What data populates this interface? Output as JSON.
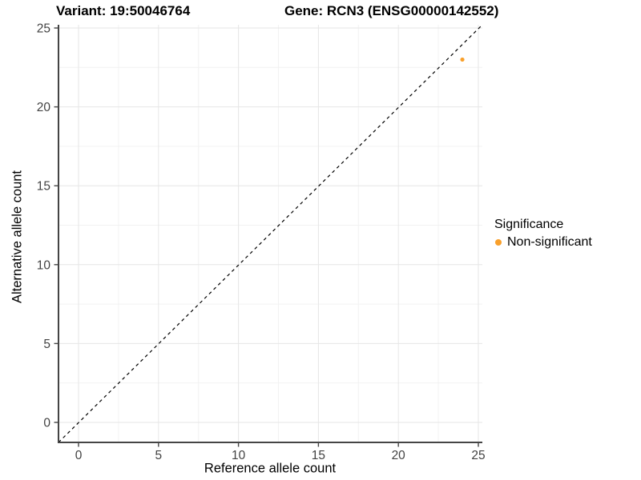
{
  "figure": {
    "title_left": "Variant: 19:50046764",
    "title_right": "Gene: RCN3 (ENSG00000142552)"
  },
  "chart_data": {
    "type": "scatter",
    "title_left": "Variant: 19:50046764",
    "title_right": "Gene: RCN3 (ENSG00000142552)",
    "xlabel": "Reference allele count",
    "ylabel": "Alternative allele count",
    "xlim": [
      -1.25,
      25.25
    ],
    "ylim": [
      -1.3,
      25.2
    ],
    "xticks": [
      0,
      5,
      10,
      15,
      20,
      25
    ],
    "yticks": [
      0,
      5,
      10,
      15,
      20,
      25
    ],
    "minor_gridlines": true,
    "grid": true,
    "identity_line": {
      "equation": "y = x",
      "style": "dashed",
      "color": "#000000"
    },
    "series": [
      {
        "name": "Non-significant",
        "color": "#F9A02B",
        "points": [
          {
            "x": 24,
            "y": 23
          }
        ]
      }
    ],
    "legend": {
      "title": "Significance",
      "position": "right",
      "entries": [
        {
          "label": "Non-significant",
          "color": "#F9A02B"
        }
      ]
    },
    "colors": {
      "major_grid": "#E6E6E6",
      "minor_grid": "#F2F2F2",
      "axis_line": "#454545",
      "tick_text": "#424242",
      "background": "#FFFFFF"
    }
  }
}
